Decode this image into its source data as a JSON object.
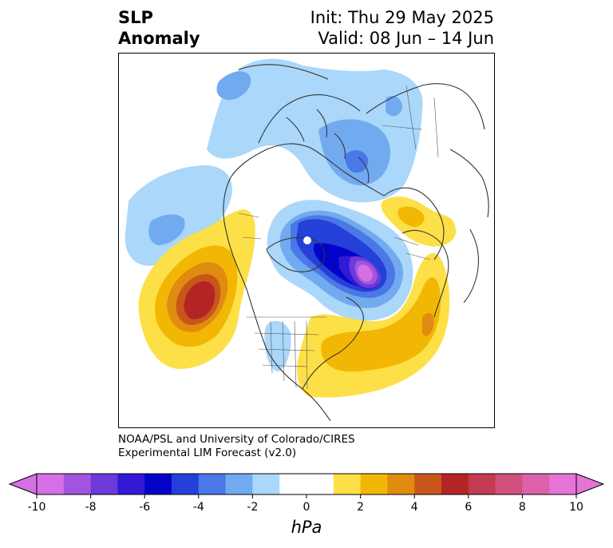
{
  "title": {
    "left_line1": "SLP",
    "left_line2": "Anomaly",
    "right_line1": "Init: Thu 29 May 2025",
    "right_line2": "Valid: 08 Jun – 14 Jun"
  },
  "credit": {
    "line1": "NOAA/PSL and University of Colorado/CIRES",
    "line2": "Experimental LIM Forecast (v2.0)"
  },
  "colorbar": {
    "units": "hPa",
    "ticks": [
      "-10",
      "-8",
      "-6",
      "-4",
      "-2",
      "0",
      "2",
      "4",
      "6",
      "8",
      "10"
    ],
    "bins": [
      {
        "from": -10,
        "to": -9,
        "color": "#d66fe6"
      },
      {
        "from": -9,
        "to": -8,
        "color": "#a155de"
      },
      {
        "from": -8,
        "to": -7,
        "color": "#6b3ad8"
      },
      {
        "from": -7,
        "to": -6,
        "color": "#3219d6"
      },
      {
        "from": -6,
        "to": -5,
        "color": "#0404c9"
      },
      {
        "from": -5,
        "to": -4,
        "color": "#2440d8"
      },
      {
        "from": -4,
        "to": -3,
        "color": "#4a78e6"
      },
      {
        "from": -3,
        "to": -2,
        "color": "#72aaf0"
      },
      {
        "from": -2,
        "to": -1,
        "color": "#aad7fa"
      },
      {
        "from": -1,
        "to": 1,
        "color": "#ffffff"
      },
      {
        "from": 1,
        "to": 2,
        "color": "#fde047"
      },
      {
        "from": 2,
        "to": 3,
        "color": "#f2b705"
      },
      {
        "from": 3,
        "to": 4,
        "color": "#e08c10"
      },
      {
        "from": 4,
        "to": 5,
        "color": "#c8561a"
      },
      {
        "from": 5,
        "to": 6,
        "color": "#b32424"
      },
      {
        "from": 6,
        "to": 7,
        "color": "#c33b52"
      },
      {
        "from": 7,
        "to": 8,
        "color": "#d0507e"
      },
      {
        "from": 8,
        "to": 9,
        "color": "#da61aa"
      },
      {
        "from": 9,
        "to": 10,
        "color": "#e673d6"
      }
    ],
    "under_color": "#d66fe6",
    "over_color": "#e673d6"
  },
  "anomaly_features": [
    {
      "name": "negative anomaly over Hudson Bay / Labrador Sea",
      "peak_hpa": -10
    },
    {
      "name": "positive anomaly over NE Pacific",
      "peak_hpa": 6
    },
    {
      "name": "positive anomaly over eastern US / western Atlantic",
      "peak_hpa": 3
    },
    {
      "name": "positive anomaly over Scandinavia / Europe",
      "peak_hpa": 2
    },
    {
      "name": "negative anomaly over Siberia / Arctic",
      "peak_hpa": -3
    },
    {
      "name": "negative anomaly over central Pacific",
      "peak_hpa": -3
    }
  ]
}
